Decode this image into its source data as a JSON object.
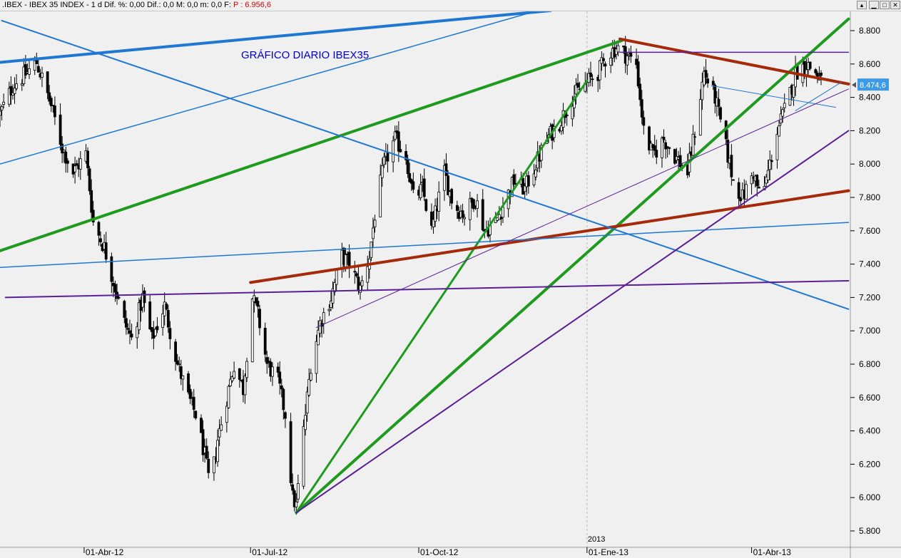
{
  "window": {
    "title_prefix": ".IBEX - IBEX 35 INDEX - 1 d  Dif. %: 0,00  Dif.: 0,0  M: 0,0  m: 0,0  F: ",
    "price_label": " P : 6.956,6",
    "buttons": [
      "▴",
      "▁",
      "□",
      "✕"
    ]
  },
  "colors": {
    "background": "#f0f0f0",
    "candles": "#000000",
    "title_text": "#0000cc",
    "last_price_box": "#3d9ae8",
    "green": "#1e9a1e",
    "brown": "#a52a0a",
    "blue": "#1e78d2",
    "purple": "#5a1e96",
    "axis_text": "#000000"
  },
  "chart_data": {
    "type": "candlestick",
    "title": "GRÁFICO DIARIO IBEX35",
    "ylim": [
      5750,
      8950
    ],
    "yticks": [
      5800,
      6000,
      6200,
      6400,
      6600,
      6800,
      7000,
      7200,
      7400,
      7600,
      7800,
      8000,
      8200,
      8400,
      8600,
      8800
    ],
    "ytick_labels": [
      "5.800",
      "6.000",
      "6.200",
      "6.400",
      "6.600",
      "6.800",
      "7.000",
      "7.200",
      "7.400",
      "7.600",
      "7.800",
      "8.000",
      "8.200",
      "8.400",
      "8.600",
      "8.800"
    ],
    "x_start": "2012-02-15",
    "x_end": "2013-05-25",
    "xtick_dates": [
      "2012-04-01",
      "2012-07-01",
      "2012-10-01",
      "2013-01-01",
      "2013-04-01"
    ],
    "xtick_labels": [
      "01-Abr-12",
      "01-Jul-12",
      "01-Oct-12",
      "01-Ene-13",
      "01-Abr-13"
    ],
    "year_marker": {
      "date": "2013-01-01",
      "label": "2013"
    },
    "last_price": {
      "value": 8474.6,
      "label": "8.474,6"
    },
    "close_anchors": [
      [
        "2012-02-15",
        8300
      ],
      [
        "2012-02-22",
        8470
      ],
      [
        "2012-03-01",
        8550
      ],
      [
        "2012-03-06",
        8610
      ],
      [
        "2012-03-14",
        8350
      ],
      [
        "2012-03-20",
        8100
      ],
      [
        "2012-03-26",
        7950
      ],
      [
        "2012-04-02",
        8060
      ],
      [
        "2012-04-06",
        7650
      ],
      [
        "2012-04-12",
        7500
      ],
      [
        "2012-04-17",
        7300
      ],
      [
        "2012-04-23",
        7050
      ],
      [
        "2012-04-27",
        6950
      ],
      [
        "2012-05-03",
        7200
      ],
      [
        "2012-05-08",
        6950
      ],
      [
        "2012-05-15",
        7150
      ],
      [
        "2012-05-22",
        6800
      ],
      [
        "2012-05-28",
        6600
      ],
      [
        "2012-06-01",
        6500
      ],
      [
        "2012-06-06",
        6250
      ],
      [
        "2012-06-09",
        6050
      ],
      [
        "2012-06-13",
        6350
      ],
      [
        "2012-06-18",
        6600
      ],
      [
        "2012-06-22",
        6800
      ],
      [
        "2012-06-27",
        6650
      ],
      [
        "2012-07-02",
        7200
      ],
      [
        "2012-07-05",
        7100
      ],
      [
        "2012-07-10",
        6800
      ],
      [
        "2012-07-16",
        6700
      ],
      [
        "2012-07-20",
        6500
      ],
      [
        "2012-07-24",
        6000
      ],
      [
        "2012-07-26",
        5950
      ],
      [
        "2012-07-30",
        6400
      ],
      [
        "2012-08-03",
        6800
      ],
      [
        "2012-08-08",
        7050
      ],
      [
        "2012-08-14",
        7200
      ],
      [
        "2012-08-20",
        7450
      ],
      [
        "2012-08-24",
        7400
      ],
      [
        "2012-08-30",
        7250
      ],
      [
        "2012-09-04",
        7450
      ],
      [
        "2012-09-07",
        7700
      ],
      [
        "2012-09-12",
        8000
      ],
      [
        "2012-09-18",
        8150
      ],
      [
        "2012-09-24",
        8050
      ],
      [
        "2012-09-28",
        7800
      ],
      [
        "2012-10-03",
        7850
      ],
      [
        "2012-10-08",
        7600
      ],
      [
        "2012-10-15",
        7950
      ],
      [
        "2012-10-20",
        7750
      ],
      [
        "2012-10-26",
        7700
      ],
      [
        "2012-11-01",
        7800
      ],
      [
        "2012-11-06",
        7600
      ],
      [
        "2012-11-12",
        7650
      ],
      [
        "2012-11-16",
        7750
      ],
      [
        "2012-11-22",
        7900
      ],
      [
        "2012-11-28",
        7850
      ],
      [
        "2012-12-04",
        8000
      ],
      [
        "2012-12-10",
        8150
      ],
      [
        "2012-12-17",
        8250
      ],
      [
        "2012-12-24",
        8400
      ],
      [
        "2013-01-02",
        8500
      ],
      [
        "2013-01-07",
        8550
      ],
      [
        "2013-01-12",
        8650
      ],
      [
        "2013-01-17",
        8700
      ],
      [
        "2013-01-23",
        8650
      ],
      [
        "2013-01-28",
        8600
      ],
      [
        "2013-02-01",
        8200
      ],
      [
        "2013-02-06",
        8050
      ],
      [
        "2013-02-12",
        8150
      ],
      [
        "2013-02-18",
        8050
      ],
      [
        "2013-02-25",
        7950
      ],
      [
        "2013-03-01",
        8200
      ],
      [
        "2013-03-06",
        8550
      ],
      [
        "2013-03-12",
        8400
      ],
      [
        "2013-03-18",
        8100
      ],
      [
        "2013-03-22",
        7900
      ],
      [
        "2013-03-27",
        7800
      ],
      [
        "2013-04-02",
        7950
      ],
      [
        "2013-04-06",
        7780
      ],
      [
        "2013-04-10",
        7950
      ],
      [
        "2013-04-15",
        8200
      ],
      [
        "2013-04-20",
        8350
      ],
      [
        "2013-04-25",
        8550
      ],
      [
        "2013-05-01",
        8600
      ],
      [
        "2013-05-06",
        8550
      ],
      [
        "2013-05-10",
        8475
      ]
    ],
    "trend_lines": [
      {
        "color": "green",
        "width": 4,
        "from": [
          "2012-02-15",
          7480
        ],
        "to": [
          "2013-01-20",
          8740
        ]
      },
      {
        "color": "green",
        "width": 4,
        "from": [
          "2012-07-26",
          5910
        ],
        "to": [
          "2013-05-24",
          8870
        ]
      },
      {
        "color": "green",
        "width": 3,
        "from": [
          "2012-07-26",
          5910
        ],
        "to": [
          "2013-01-01",
          8500
        ],
        "style": "thin"
      },
      {
        "color": "brown",
        "width": 4,
        "from": [
          "2012-07-01",
          7290
        ],
        "to": [
          "2013-05-24",
          7840
        ]
      },
      {
        "color": "brown",
        "width": 4,
        "from": [
          "2013-01-19",
          8750
        ],
        "to": [
          "2013-05-24",
          8480
        ]
      },
      {
        "color": "blue",
        "width": 4,
        "from": [
          "2012-02-15",
          8610
        ],
        "to": [
          "2012-12-12",
          8920
        ]
      },
      {
        "color": "blue",
        "width": 1.5,
        "from": [
          "2012-02-15",
          8000
        ],
        "to": [
          "2012-12-05",
          8920
        ]
      },
      {
        "color": "blue",
        "width": 1.5,
        "from": [
          "2012-02-15",
          7380
        ],
        "to": [
          "2013-05-24",
          7650
        ]
      },
      {
        "color": "blue",
        "width": 2,
        "from": [
          "2012-02-16",
          8860
        ],
        "to": [
          "2013-05-24",
          7130
        ]
      },
      {
        "color": "blue",
        "width": 1,
        "from": [
          "2013-03-10",
          8470
        ],
        "to": [
          "2013-05-17",
          8340
        ]
      },
      {
        "color": "blue",
        "width": 1,
        "from": [
          "2013-04-25",
          8320
        ],
        "to": [
          "2013-05-20",
          8490
        ]
      },
      {
        "color": "purple",
        "width": 2,
        "from": [
          "2012-02-18",
          7200
        ],
        "to": [
          "2013-05-24",
          7300
        ]
      },
      {
        "color": "purple",
        "width": 1.5,
        "from": [
          "2013-01-19",
          8670
        ],
        "to": [
          "2013-05-24",
          8670
        ]
      },
      {
        "color": "purple",
        "width": 1,
        "from": [
          "2012-08-06",
          7020
        ],
        "to": [
          "2013-05-24",
          8450
        ]
      },
      {
        "color": "purple",
        "width": 2,
        "from": [
          "2012-07-26",
          5910
        ],
        "to": [
          "2013-05-24",
          8200
        ]
      }
    ]
  }
}
